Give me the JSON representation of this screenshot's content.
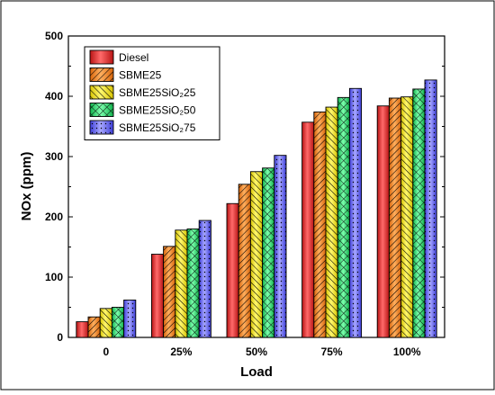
{
  "chart_data": {
    "type": "bar",
    "xlabel": "Load",
    "ylabel": "NOx (ppm)",
    "ylim": [
      0,
      500
    ],
    "yticks": [
      0,
      100,
      200,
      300,
      400,
      500
    ],
    "categories": [
      "0",
      "25%",
      "50%",
      "75%",
      "100%"
    ],
    "legend_position": "top-left",
    "series": [
      {
        "name": "Diesel",
        "color": "#ef3b3b",
        "pattern": "solid",
        "values": [
          26,
          138,
          222,
          357,
          384
        ]
      },
      {
        "name": "SBME25",
        "color": "#f58a1f",
        "pattern": "diagonal-stripes",
        "values": [
          34,
          151,
          254,
          374,
          397
        ]
      },
      {
        "name": "SBME25SiO₂25",
        "color": "#ffee00",
        "pattern": "diagonal-stripes-reverse",
        "values": [
          48,
          178,
          275,
          382,
          399
        ]
      },
      {
        "name": "SBME25SiO₂50",
        "color": "#22e06a",
        "pattern": "crosshatch",
        "values": [
          50,
          180,
          281,
          398,
          412
        ]
      },
      {
        "name": "SBME25SiO₂75",
        "color": "#6a6aff",
        "pattern": "dots",
        "values": [
          62,
          194,
          302,
          413,
          427
        ]
      }
    ]
  }
}
